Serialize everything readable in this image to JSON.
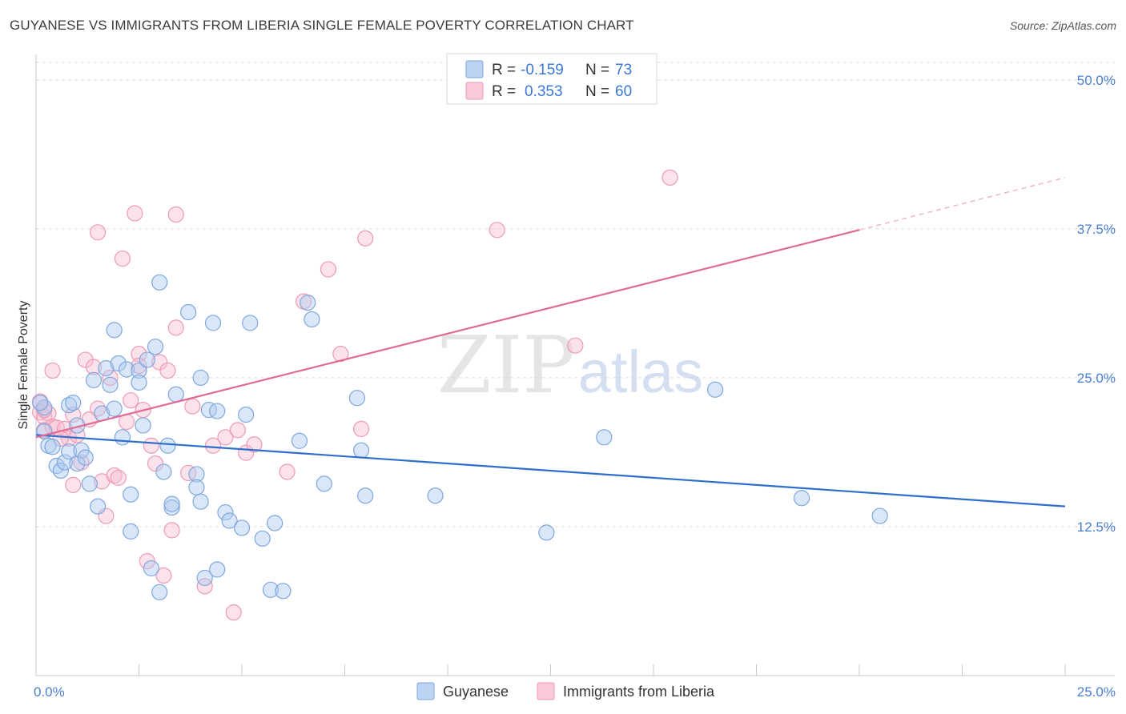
{
  "title": "GUYANESE VS IMMIGRANTS FROM LIBERIA SINGLE FEMALE POVERTY CORRELATION CHART",
  "source": "Source: ZipAtlas.com",
  "watermark": {
    "zip": "ZIP",
    "atlas": "atlas"
  },
  "chart_data": {
    "type": "scatter",
    "ylabel": "Single Female Poverty",
    "xlim": [
      0,
      25
    ],
    "ylim": [
      0,
      52
    ],
    "x_ticks": [
      {
        "value": 0,
        "label": "0.0%"
      },
      {
        "value": 25,
        "label": "25.0%"
      }
    ],
    "y_ticks": [
      {
        "value": 12.5,
        "label": "12.5%"
      },
      {
        "value": 25.0,
        "label": "25.0%"
      },
      {
        "value": 37.5,
        "label": "37.5%"
      },
      {
        "value": 50.0,
        "label": "50.0%"
      }
    ],
    "grid": true,
    "legend_position": "top-center",
    "series": [
      {
        "name": "Guyanese",
        "color": "#8fb5e8",
        "line_color": "#2f6fcc",
        "R": "-0.159",
        "N": "73",
        "trend": {
          "x": [
            0,
            25
          ],
          "y": [
            20.2,
            14.2
          ]
        },
        "points": [
          [
            0.2,
            22.5
          ],
          [
            0.2,
            20.5
          ],
          [
            0.3,
            19.3
          ],
          [
            0.4,
            19.2
          ],
          [
            0.5,
            17.6
          ],
          [
            0.6,
            17.2
          ],
          [
            0.7,
            17.9
          ],
          [
            0.8,
            18.8
          ],
          [
            0.8,
            22.7
          ],
          [
            0.9,
            22.9
          ],
          [
            1.0,
            17.8
          ],
          [
            1.0,
            21.0
          ],
          [
            1.1,
            18.9
          ],
          [
            1.2,
            18.3
          ],
          [
            1.3,
            16.1
          ],
          [
            1.4,
            24.8
          ],
          [
            1.5,
            14.2
          ],
          [
            1.6,
            22.0
          ],
          [
            1.7,
            25.8
          ],
          [
            1.8,
            24.4
          ],
          [
            1.9,
            22.4
          ],
          [
            1.9,
            29.0
          ],
          [
            2.0,
            26.2
          ],
          [
            2.1,
            20.0
          ],
          [
            2.2,
            25.7
          ],
          [
            2.3,
            12.1
          ],
          [
            2.3,
            15.2
          ],
          [
            2.5,
            25.6
          ],
          [
            2.5,
            24.6
          ],
          [
            2.6,
            21.0
          ],
          [
            2.7,
            26.5
          ],
          [
            2.8,
            9.0
          ],
          [
            2.9,
            27.6
          ],
          [
            3.0,
            7.0
          ],
          [
            3.0,
            33.0
          ],
          [
            3.1,
            17.1
          ],
          [
            3.2,
            19.3
          ],
          [
            3.3,
            14.1
          ],
          [
            3.3,
            14.4
          ],
          [
            3.4,
            23.6
          ],
          [
            3.7,
            30.5
          ],
          [
            3.9,
            16.9
          ],
          [
            3.9,
            15.8
          ],
          [
            4.0,
            25.0
          ],
          [
            4.0,
            14.6
          ],
          [
            4.1,
            8.2
          ],
          [
            4.2,
            22.3
          ],
          [
            4.3,
            29.6
          ],
          [
            4.4,
            22.2
          ],
          [
            4.4,
            8.9
          ],
          [
            4.6,
            13.7
          ],
          [
            4.7,
            13.0
          ],
          [
            5.0,
            12.4
          ],
          [
            5.1,
            21.9
          ],
          [
            5.2,
            29.6
          ],
          [
            5.5,
            11.5
          ],
          [
            5.7,
            7.2
          ],
          [
            5.8,
            12.8
          ],
          [
            6.0,
            7.1
          ],
          [
            6.4,
            19.7
          ],
          [
            6.6,
            31.3
          ],
          [
            6.7,
            29.9
          ],
          [
            7.0,
            16.1
          ],
          [
            7.8,
            23.3
          ],
          [
            7.9,
            18.9
          ],
          [
            8.0,
            15.1
          ],
          [
            9.7,
            15.1
          ],
          [
            12.4,
            12.0
          ],
          [
            13.8,
            20.0
          ],
          [
            16.5,
            24.0
          ],
          [
            18.6,
            14.9
          ],
          [
            20.5,
            13.4
          ],
          [
            0.1,
            22.9
          ]
        ]
      },
      {
        "name": "Immigrants from Liberia",
        "color": "#f4a9c2",
        "line_color": "#e06a93",
        "R": "0.353",
        "N": "60",
        "trend": {
          "x": [
            0,
            20
          ],
          "y": [
            20.0,
            37.4
          ]
        },
        "trend_dashed": {
          "x": [
            20,
            25
          ],
          "y": [
            37.4,
            41.8
          ]
        },
        "points": [
          [
            0.1,
            23.0
          ],
          [
            0.1,
            22.1
          ],
          [
            0.2,
            21.7
          ],
          [
            0.2,
            20.6
          ],
          [
            0.3,
            22.0
          ],
          [
            0.4,
            20.9
          ],
          [
            0.4,
            25.6
          ],
          [
            0.5,
            20.8
          ],
          [
            0.7,
            20.7
          ],
          [
            0.8,
            19.9
          ],
          [
            0.9,
            21.9
          ],
          [
            0.9,
            16.0
          ],
          [
            1.0,
            20.2
          ],
          [
            1.1,
            17.9
          ],
          [
            1.2,
            26.5
          ],
          [
            1.3,
            21.5
          ],
          [
            1.4,
            25.9
          ],
          [
            1.5,
            22.4
          ],
          [
            1.5,
            37.2
          ],
          [
            1.6,
            16.3
          ],
          [
            1.7,
            13.4
          ],
          [
            1.8,
            25.0
          ],
          [
            1.9,
            16.8
          ],
          [
            2.0,
            16.6
          ],
          [
            2.1,
            35.0
          ],
          [
            2.2,
            21.3
          ],
          [
            2.3,
            23.1
          ],
          [
            2.4,
            38.8
          ],
          [
            2.5,
            27.0
          ],
          [
            2.5,
            26.0
          ],
          [
            2.6,
            22.3
          ],
          [
            2.7,
            9.6
          ],
          [
            2.8,
            19.3
          ],
          [
            2.9,
            17.8
          ],
          [
            3.0,
            26.3
          ],
          [
            3.1,
            8.4
          ],
          [
            3.2,
            25.6
          ],
          [
            3.3,
            12.2
          ],
          [
            3.4,
            38.7
          ],
          [
            3.4,
            29.2
          ],
          [
            3.7,
            17.0
          ],
          [
            3.8,
            22.6
          ],
          [
            4.1,
            7.5
          ],
          [
            4.3,
            19.3
          ],
          [
            4.6,
            20.0
          ],
          [
            4.8,
            5.3
          ],
          [
            4.9,
            20.6
          ],
          [
            5.1,
            18.7
          ],
          [
            5.3,
            19.4
          ],
          [
            6.1,
            17.1
          ],
          [
            6.5,
            31.4
          ],
          [
            7.1,
            34.1
          ],
          [
            7.4,
            27.0
          ],
          [
            7.9,
            20.7
          ],
          [
            8.0,
            36.7
          ],
          [
            11.2,
            37.4
          ],
          [
            13.1,
            27.7
          ],
          [
            15.4,
            41.8
          ],
          [
            0.2,
            22.3
          ],
          [
            0.6,
            19.9
          ]
        ]
      }
    ]
  }
}
